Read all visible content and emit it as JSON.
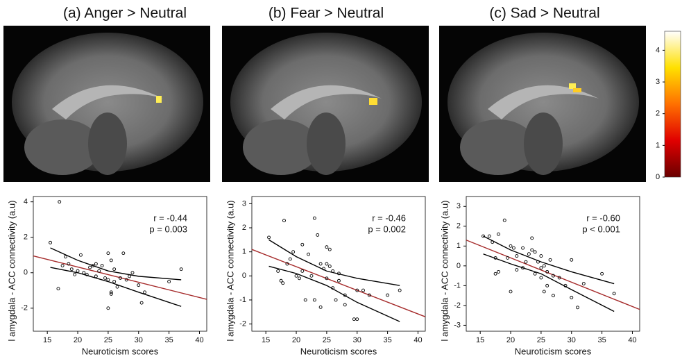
{
  "chart_data": [
    {
      "type": "scatter",
      "title": "(a) Anger > Neutral",
      "xlabel": "Neuroticism scores",
      "ylabel": "l amygdala - ACC connectivity (a.u)",
      "annotations": [
        "r = -0.44",
        "p = 0.003"
      ],
      "xlim": [
        12.7,
        41.2
      ],
      "xticks": [
        15,
        20,
        25,
        30,
        35,
        40
      ],
      "ylim": [
        -3.3,
        4.3
      ],
      "yticks": [
        -2,
        0,
        2,
        4
      ],
      "points": {
        "x": [
          15.5,
          17,
          16.8,
          17.5,
          18,
          18.5,
          19,
          19.5,
          20,
          20.5,
          21,
          21.5,
          22,
          22.5,
          23,
          23,
          23.5,
          24,
          24.5,
          25,
          25,
          25,
          25.5,
          25.5,
          25.5,
          26,
          26,
          26.5,
          27,
          27.5,
          28,
          28.5,
          29,
          30,
          30.5,
          31,
          35,
          37
        ],
        "y": [
          1.7,
          4.0,
          -0.9,
          0.4,
          0.9,
          0.5,
          0.2,
          -0.1,
          0.1,
          1.0,
          0.0,
          -0.1,
          0.3,
          0.4,
          -0.2,
          0.5,
          0.1,
          0.4,
          -0.3,
          1.1,
          -2.0,
          -0.4,
          0.7,
          -1.2,
          -1.1,
          -0.5,
          0.2,
          -0.8,
          -0.3,
          1.1,
          -0.4,
          -0.2,
          0.0,
          -0.7,
          -1.7,
          -1.1,
          -0.5,
          0.2
        ]
      },
      "fit": {
        "color": "#a52a2a",
        "x": [
          12.7,
          41.2
        ],
        "y": [
          0.95,
          -1.5
        ]
      },
      "ci_upper": {
        "color": "#000000",
        "x": [
          15.5,
          20,
          25,
          30,
          37
        ],
        "y": [
          1.4,
          0.7,
          0.1,
          -0.2,
          -0.4
        ]
      },
      "ci_lower": {
        "color": "#000000",
        "x": [
          15.5,
          20,
          25,
          30,
          37
        ],
        "y": [
          0.3,
          0.0,
          -0.5,
          -1.1,
          -1.9
        ]
      }
    },
    {
      "type": "scatter",
      "title": "(b) Fear > Neutral",
      "xlabel": "Neuroticism scores",
      "ylabel": "l amygdala - ACC connectivity (a.u)",
      "annotations": [
        "r = -0.46",
        "p = 0.002"
      ],
      "xlim": [
        12.7,
        41.2
      ],
      "xticks": [
        15,
        20,
        25,
        30,
        35,
        40
      ],
      "ylim": [
        -2.3,
        3.3
      ],
      "yticks": [
        -2,
        -1,
        0,
        1,
        2,
        3
      ],
      "points": {
        "x": [
          15.5,
          17,
          17.5,
          17.8,
          18,
          18.5,
          19,
          19.5,
          20,
          20.5,
          21,
          21,
          21.5,
          22,
          22.5,
          23,
          23,
          23.5,
          24,
          24,
          24.5,
          25,
          25,
          25,
          25.5,
          25.5,
          26,
          26,
          26.5,
          27,
          27,
          28,
          28,
          29.5,
          30,
          30,
          31,
          32,
          35,
          37
        ],
        "y": [
          1.6,
          0.2,
          -0.2,
          -0.3,
          2.3,
          0.5,
          0.7,
          1.0,
          0.0,
          -0.1,
          1.3,
          0.2,
          -1.0,
          0.9,
          0.0,
          2.4,
          -1.0,
          1.7,
          0.5,
          -1.3,
          0.3,
          0.5,
          1.2,
          -0.1,
          0.4,
          1.1,
          0.2,
          -0.5,
          -1.0,
          0.1,
          -0.2,
          -0.8,
          -1.2,
          -1.8,
          -1.8,
          -0.6,
          -0.6,
          -0.8,
          -0.8,
          -0.6
        ]
      },
      "fit": {
        "color": "#a52a2a",
        "x": [
          12.7,
          41.2
        ],
        "y": [
          1.1,
          -1.7
        ]
      },
      "ci_upper": {
        "color": "#000000",
        "x": [
          15.5,
          20,
          25,
          30,
          37
        ],
        "y": [
          1.5,
          0.8,
          0.2,
          -0.1,
          -0.4
        ]
      },
      "ci_lower": {
        "color": "#000000",
        "x": [
          15.5,
          20,
          25,
          30,
          37
        ],
        "y": [
          0.4,
          0.1,
          -0.4,
          -1.1,
          -1.9
        ]
      }
    },
    {
      "type": "scatter",
      "title": "(c) Sad > Neutral",
      "xlabel": "Neuroticism scores",
      "ylabel": "l amygdala - ACC connectivity (a.u)",
      "annotations": [
        "r = -0.60",
        "p < 0.001"
      ],
      "xlim": [
        12.7,
        41.2
      ],
      "xticks": [
        15,
        20,
        25,
        30,
        35,
        40
      ],
      "ylim": [
        -3.3,
        3.5
      ],
      "yticks": [
        -3,
        -2,
        -1,
        0,
        1,
        2,
        3
      ],
      "points": {
        "x": [
          15.5,
          16.5,
          17,
          17.5,
          17.5,
          18,
          18,
          19,
          19.5,
          20,
          20,
          20.5,
          21,
          21,
          22,
          22,
          22.5,
          23,
          23.5,
          23.5,
          24,
          24,
          24.5,
          25,
          25,
          25,
          25.5,
          25.5,
          26,
          26,
          26.5,
          27,
          27,
          28,
          29,
          30,
          30,
          31,
          32,
          35,
          37
        ],
        "y": [
          1.5,
          1.5,
          1.2,
          -0.4,
          0.4,
          1.6,
          -0.3,
          2.3,
          0.4,
          1.0,
          -1.3,
          0.9,
          -0.2,
          0.5,
          0.9,
          -0.1,
          0.2,
          0.6,
          1.4,
          0.8,
          0.7,
          -0.4,
          0.2,
          0.5,
          -0.1,
          -0.6,
          0.0,
          -1.3,
          -0.3,
          -1.0,
          0.3,
          -0.5,
          -1.5,
          -0.6,
          -1.0,
          0.3,
          -1.6,
          -2.1,
          -0.9,
          -0.4,
          -1.4
        ]
      },
      "fit": {
        "color": "#a52a2a",
        "x": [
          12.7,
          41.2
        ],
        "y": [
          1.3,
          -2.2
        ]
      },
      "ci_upper": {
        "color": "#000000",
        "x": [
          15.5,
          20,
          25,
          30,
          37
        ],
        "y": [
          1.5,
          0.8,
          0.2,
          -0.3,
          -0.9
        ]
      },
      "ci_lower": {
        "color": "#000000",
        "x": [
          15.5,
          20,
          25,
          30,
          37
        ],
        "y": [
          0.6,
          0.1,
          -0.4,
          -1.2,
          -2.3
        ]
      }
    },
    {
      "type": "colorbar",
      "lim": [
        0,
        4.6
      ],
      "ticks": [
        0,
        1,
        2,
        3,
        4
      ],
      "colors": [
        "#6a0000",
        "#e00000",
        "#ff7000",
        "#ffe000",
        "#ffffff"
      ]
    }
  ]
}
